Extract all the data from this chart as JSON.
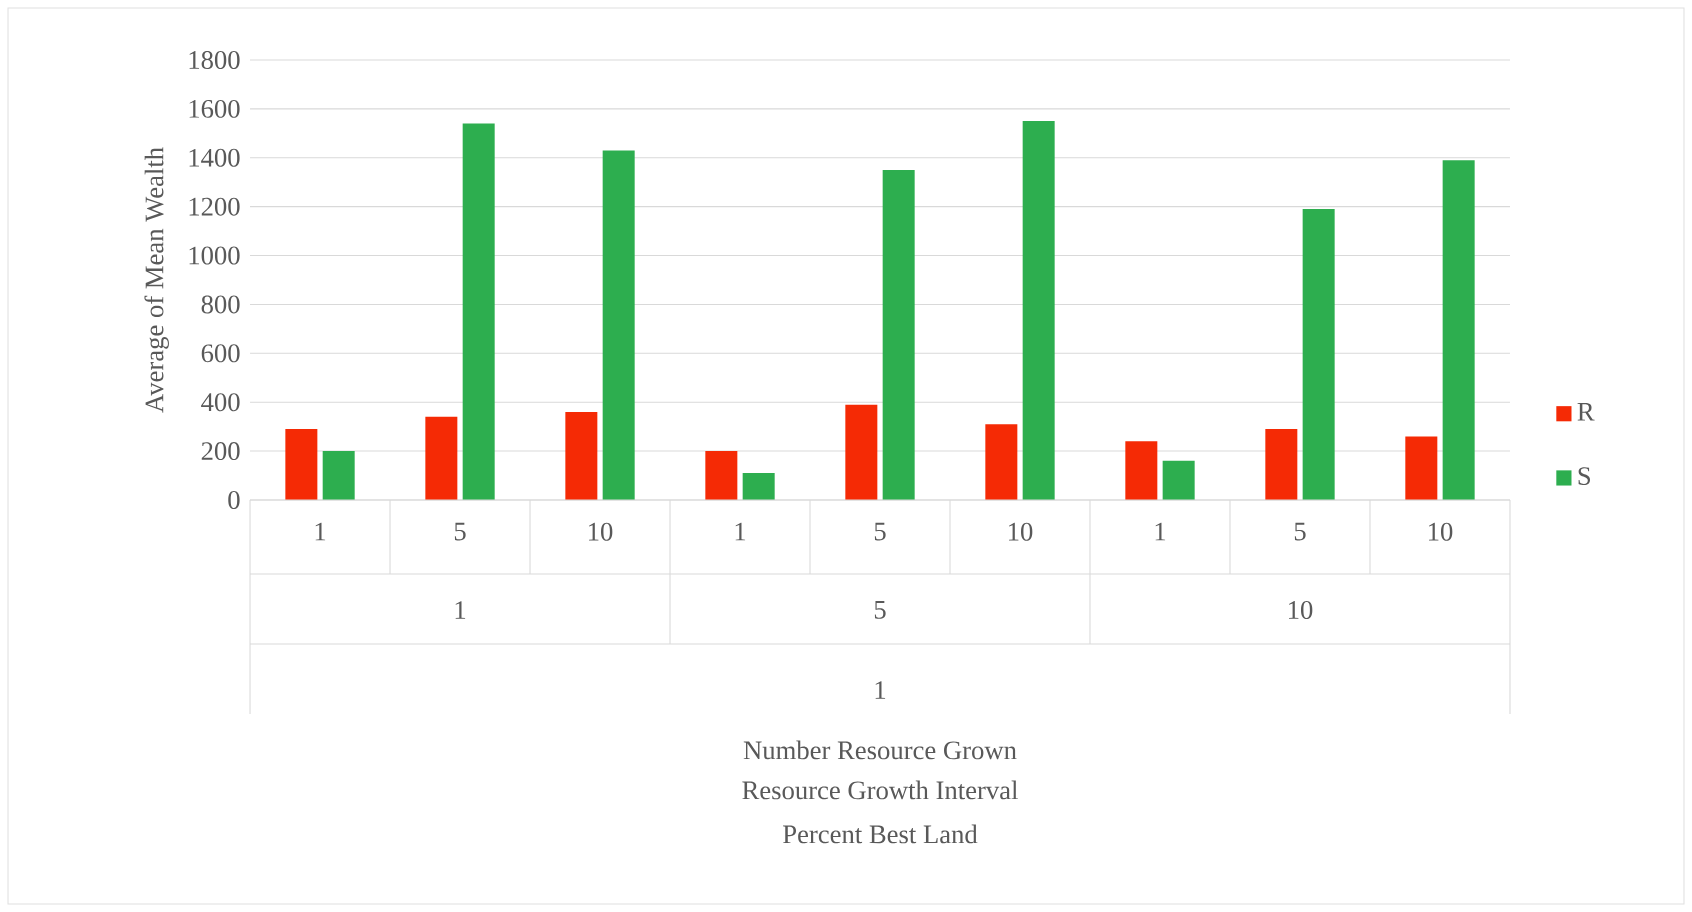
{
  "chart_data": {
    "type": "bar",
    "categories": [
      "1",
      "5",
      "10",
      "1",
      "5",
      "10",
      "1",
      "5",
      "10"
    ],
    "series": [
      {
        "name": "R",
        "color": "#f52a05",
        "values": [
          290,
          340,
          360,
          200,
          390,
          310,
          240,
          290,
          260
        ]
      },
      {
        "name": "S",
        "color": "#2dae4f",
        "values": [
          200,
          1540,
          1430,
          110,
          1350,
          1550,
          160,
          1190,
          1390
        ]
      }
    ],
    "ylabel": "Average of Mean Wealth",
    "annotations": [
      "1",
      "5",
      "10",
      "1",
      "Number Resource Grown",
      "Resource Growth Interval",
      "Percent Best Land"
    ],
    "ylim": [
      0,
      1800
    ],
    "yticks": [
      0,
      200,
      400,
      600,
      800,
      1000,
      1200,
      1400,
      1600,
      1800
    ],
    "grid": "y",
    "legend": "right"
  }
}
